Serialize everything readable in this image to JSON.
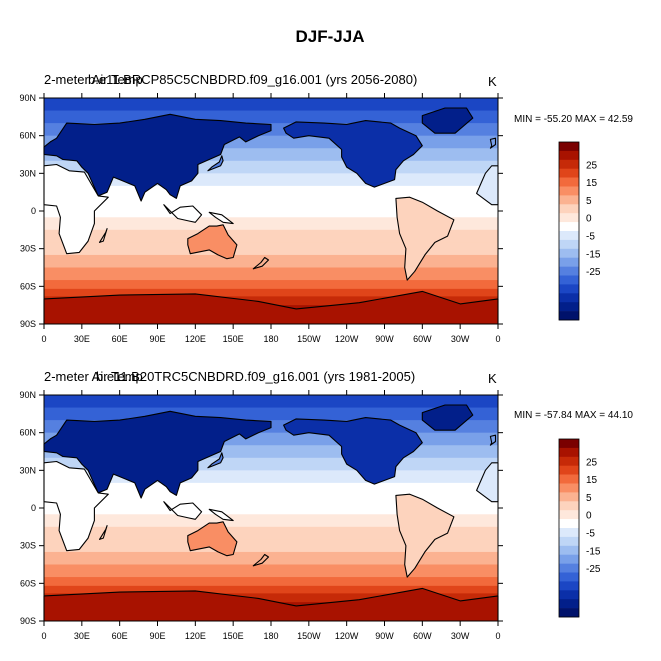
{
  "figure": {
    "title": "DJF-JJA",
    "panels": [
      {
        "left_title_a": "2-meter Air Temp",
        "left_title_b": "b.e11.BRCP85C5CNBDRD.f09_g16.001 (yrs 2056-2080)",
        "units": "K",
        "stats": "MIN = -55.20 MAX =  42.59",
        "min": -55.2,
        "max": 42.59
      },
      {
        "left_title_a": "2-meter Air Temp",
        "left_title_b": "b.e11.B20TRC5CNBDRD.f09_g16.001 (yrs 1981-2005)",
        "units": "K",
        "stats": "MIN = -57.84 MAX =  44.10",
        "min": -57.84,
        "max": 44.1
      }
    ],
    "x_ticks": [
      "0",
      "30E",
      "60E",
      "90E",
      "120E",
      "150E",
      "180",
      "150W",
      "120W",
      "90W",
      "60W",
      "30W",
      "0"
    ],
    "y_ticks": [
      "90N",
      "60N",
      "30N",
      "0",
      "30S",
      "60S",
      "90S"
    ],
    "colorbar": {
      "labels": [
        "25",
        "15",
        "5",
        "0",
        "-5",
        "-15",
        "-25"
      ],
      "colors": [
        "#7a0000",
        "#a81200",
        "#c62a08",
        "#e0451a",
        "#f26a3c",
        "#f98e64",
        "#fbb291",
        "#fdd3bd",
        "#fee8dc",
        "#ffffff",
        "#dce9fb",
        "#bfd6f6",
        "#9dbdf0",
        "#79a0e9",
        "#5580e0",
        "#3462d6",
        "#1b46c4",
        "#0b2fa8",
        "#021f8a",
        "#00126b"
      ]
    }
  },
  "chart_data": {
    "type": "heatmap",
    "title": "DJF-JJA",
    "projection": "cylindrical equidistant, centered on 180",
    "xlabel": "",
    "ylabel": "",
    "x_ticks": [
      "0",
      "30E",
      "60E",
      "90E",
      "120E",
      "150E",
      "180",
      "150W",
      "120W",
      "90W",
      "60W",
      "30W",
      "0"
    ],
    "y_ticks": [
      "90N",
      "60N",
      "30N",
      "0",
      "30S",
      "60S",
      "90S"
    ],
    "units": "K",
    "contour_levels": [
      -35,
      -30,
      -25,
      -20,
      -15,
      -10,
      -5,
      -2,
      0,
      2,
      5,
      10,
      15,
      20,
      25,
      30,
      35
    ],
    "panels": [
      {
        "name": "b.e11.BRCP85C5CNBDRD.f09_g16.001 (yrs 2056-2080)",
        "variable": "2-meter Air Temp",
        "min": -55.2,
        "max": 42.59
      },
      {
        "name": "b.e11.B20TRC5CNBDRD.f09_g16.001 (yrs 1981-2005)",
        "variable": "2-meter Air Temp",
        "min": -57.84,
        "max": 44.1
      }
    ],
    "approx_zonal_pattern": [
      {
        "lat": 90,
        "ocean": -18,
        "land": -30
      },
      {
        "lat": 60,
        "ocean": -16,
        "land": -35
      },
      {
        "lat": 30,
        "ocean": -8,
        "land": -15
      },
      {
        "lat": 0,
        "ocean": -1,
        "land": -2
      },
      {
        "lat": -30,
        "ocean": 5,
        "land": 12
      },
      {
        "lat": -60,
        "ocean": 15,
        "land": 15
      },
      {
        "lat": -90,
        "ocean": 28,
        "land": 28
      }
    ]
  }
}
